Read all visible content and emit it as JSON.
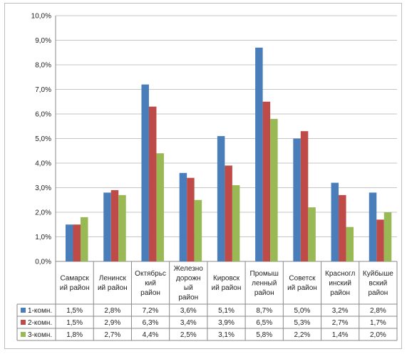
{
  "chart_data": {
    "type": "bar",
    "title": "",
    "xlabel": "",
    "ylabel": "",
    "ylim": [
      0,
      10
    ],
    "y_tick_labels": [
      "0,0%",
      "1,0%",
      "2,0%",
      "3,0%",
      "4,0%",
      "5,0%",
      "6,0%",
      "7,0%",
      "8,0%",
      "9,0%",
      "10,0%"
    ],
    "grid": true,
    "legend": "data-table-left",
    "categories": [
      [
        "Самарск",
        "ий район"
      ],
      [
        "Ленинск",
        "ий район"
      ],
      [
        "Октябрьс",
        "кий",
        "район"
      ],
      [
        "Железно",
        "дорожн",
        "ый",
        "район"
      ],
      [
        "Кировск",
        "ий район"
      ],
      [
        "Промыш",
        "ленный",
        "район"
      ],
      [
        "Советск",
        "ий район"
      ],
      [
        "Красногл",
        "инский",
        "район"
      ],
      [
        "Куйбыше",
        "вский",
        "район"
      ]
    ],
    "series": [
      {
        "name": "1-комн.",
        "color": "#4a7ebb",
        "values": [
          1.5,
          2.8,
          7.2,
          3.6,
          5.1,
          8.7,
          5.0,
          3.2,
          2.8
        ],
        "labels": [
          "1,5%",
          "2,8%",
          "7,2%",
          "3,6%",
          "5,1%",
          "8,7%",
          "5,0%",
          "3,2%",
          "2,8%"
        ]
      },
      {
        "name": "2-комн.",
        "color": "#be4b48",
        "values": [
          1.5,
          2.9,
          6.3,
          3.4,
          3.9,
          6.5,
          5.3,
          2.7,
          1.7
        ],
        "labels": [
          "1,5%",
          "2,9%",
          "6,3%",
          "3,4%",
          "3,9%",
          "6,5%",
          "5,3%",
          "2,7%",
          "1,7%"
        ]
      },
      {
        "name": "3-комн.",
        "color": "#98b954",
        "values": [
          1.8,
          2.7,
          4.4,
          2.5,
          3.1,
          5.8,
          2.2,
          1.4,
          2.0
        ],
        "labels": [
          "1,8%",
          "2,7%",
          "4,4%",
          "2,5%",
          "3,1%",
          "5,8%",
          "2,2%",
          "1,4%",
          "2,0%"
        ]
      }
    ]
  }
}
